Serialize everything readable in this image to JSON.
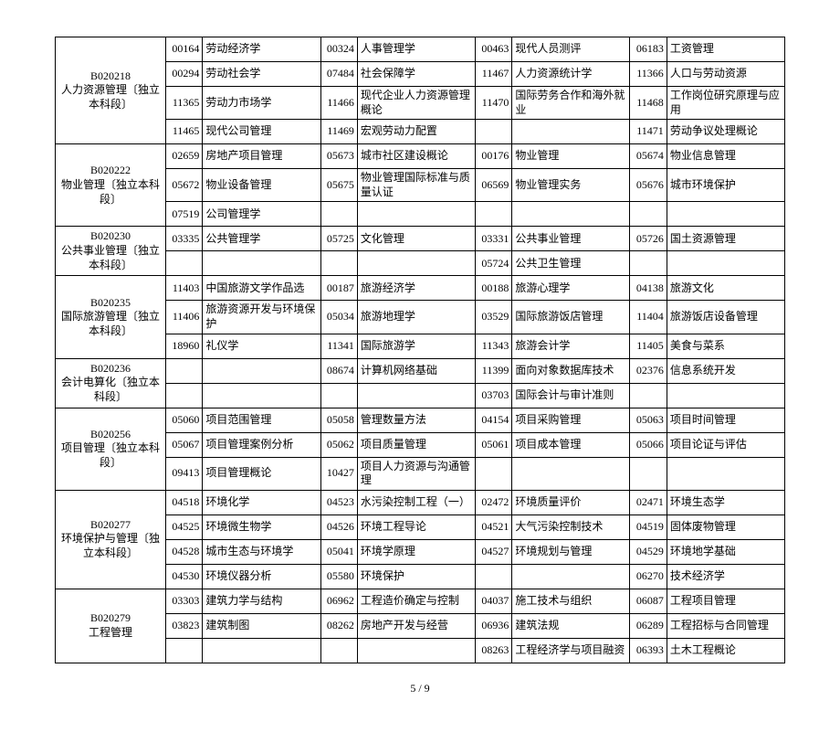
{
  "columns_width": [
    "15%",
    "5%",
    "16%",
    "5%",
    "16%",
    "5%",
    "16%",
    "5%",
    "16%"
  ],
  "rows": [
    [
      {
        "t": "B020218\n人力资源管理〔独立本科段〕",
        "align": "center",
        "rs": 4
      },
      {
        "t": "00164",
        "align": "right"
      },
      {
        "t": "劳动经济学"
      },
      {
        "t": "00324",
        "align": "right"
      },
      {
        "t": "人事管理学"
      },
      {
        "t": "00463",
        "align": "right"
      },
      {
        "t": "现代人员测评"
      },
      {
        "t": "06183",
        "align": "right"
      },
      {
        "t": "工资管理"
      }
    ],
    [
      {
        "t": "00294",
        "align": "right"
      },
      {
        "t": "劳动社会学"
      },
      {
        "t": "07484",
        "align": "right"
      },
      {
        "t": "社会保障学"
      },
      {
        "t": "11467",
        "align": "right"
      },
      {
        "t": "人力资源统计学"
      },
      {
        "t": "11366",
        "align": "right"
      },
      {
        "t": "人口与劳动资源"
      }
    ],
    [
      {
        "t": "11365",
        "align": "right"
      },
      {
        "t": "劳动力市场学"
      },
      {
        "t": "11466",
        "align": "right"
      },
      {
        "t": "现代企业人力资源管理概论"
      },
      {
        "t": "11470",
        "align": "right"
      },
      {
        "t": "国际劳务合作和海外就业"
      },
      {
        "t": "11468",
        "align": "right"
      },
      {
        "t": "工作岗位研究原理与应用"
      }
    ],
    [
      {
        "t": "11465",
        "align": "right"
      },
      {
        "t": "现代公司管理"
      },
      {
        "t": "11469",
        "align": "right"
      },
      {
        "t": "宏观劳动力配置"
      },
      {
        "t": ""
      },
      {
        "t": ""
      },
      {
        "t": "11471",
        "align": "right"
      },
      {
        "t": "劳动争议处理概论"
      }
    ],
    [
      {
        "t": "B020222\n物业管理〔独立本科段〕",
        "align": "center",
        "rs": 3
      },
      {
        "t": "02659",
        "align": "right"
      },
      {
        "t": "房地产项目管理"
      },
      {
        "t": "05673",
        "align": "right"
      },
      {
        "t": "城市社区建设概论"
      },
      {
        "t": "00176",
        "align": "right"
      },
      {
        "t": "物业管理"
      },
      {
        "t": "05674",
        "align": "right"
      },
      {
        "t": "物业信息管理"
      }
    ],
    [
      {
        "t": "05672",
        "align": "right"
      },
      {
        "t": "物业设备管理"
      },
      {
        "t": "05675",
        "align": "right"
      },
      {
        "t": "物业管理国际标准与质量认证"
      },
      {
        "t": "06569",
        "align": "right"
      },
      {
        "t": "物业管理实务"
      },
      {
        "t": "05676",
        "align": "right"
      },
      {
        "t": "城市环境保护"
      }
    ],
    [
      {
        "t": "07519",
        "align": "right"
      },
      {
        "t": "公司管理学"
      },
      {
        "t": ""
      },
      {
        "t": ""
      },
      {
        "t": ""
      },
      {
        "t": ""
      },
      {
        "t": ""
      },
      {
        "t": ""
      }
    ],
    [
      {
        "t": "B020230\n公共事业管理〔独立本科段〕",
        "align": "center",
        "rs": 2
      },
      {
        "t": "03335",
        "align": "right"
      },
      {
        "t": "公共管理学"
      },
      {
        "t": "05725",
        "align": "right"
      },
      {
        "t": "文化管理"
      },
      {
        "t": "03331",
        "align": "right"
      },
      {
        "t": "公共事业管理"
      },
      {
        "t": "05726",
        "align": "right"
      },
      {
        "t": "国土资源管理"
      }
    ],
    [
      {
        "t": ""
      },
      {
        "t": ""
      },
      {
        "t": ""
      },
      {
        "t": ""
      },
      {
        "t": "05724",
        "align": "right"
      },
      {
        "t": "公共卫生管理"
      },
      {
        "t": ""
      },
      {
        "t": ""
      }
    ],
    [
      {
        "t": "B020235\n国际旅游管理〔独立本科段〕",
        "align": "center",
        "rs": 3
      },
      {
        "t": "11403",
        "align": "right"
      },
      {
        "t": "中国旅游文学作品选"
      },
      {
        "t": "00187",
        "align": "right"
      },
      {
        "t": "旅游经济学"
      },
      {
        "t": "00188",
        "align": "right"
      },
      {
        "t": "旅游心理学"
      },
      {
        "t": "04138",
        "align": "right"
      },
      {
        "t": "旅游文化"
      }
    ],
    [
      {
        "t": "11406",
        "align": "right"
      },
      {
        "t": "旅游资源开发与环境保护"
      },
      {
        "t": "05034",
        "align": "right"
      },
      {
        "t": "旅游地理学"
      },
      {
        "t": "03529",
        "align": "right"
      },
      {
        "t": "国际旅游饭店管理"
      },
      {
        "t": "11404",
        "align": "right"
      },
      {
        "t": "旅游饭店设备管理"
      }
    ],
    [
      {
        "t": "18960",
        "align": "right"
      },
      {
        "t": "礼仪学"
      },
      {
        "t": "11341",
        "align": "right"
      },
      {
        "t": "国际旅游学"
      },
      {
        "t": "11343",
        "align": "right"
      },
      {
        "t": "旅游会计学"
      },
      {
        "t": "11405",
        "align": "right"
      },
      {
        "t": "美食与菜系"
      }
    ],
    [
      {
        "t": "B020236\n会计电算化〔独立本科段〕",
        "align": "center",
        "rs": 2
      },
      {
        "t": ""
      },
      {
        "t": ""
      },
      {
        "t": "08674",
        "align": "right"
      },
      {
        "t": "计算机网络基础"
      },
      {
        "t": "11399",
        "align": "right"
      },
      {
        "t": "面向对象数据库技术"
      },
      {
        "t": "02376",
        "align": "right"
      },
      {
        "t": "信息系统开发"
      }
    ],
    [
      {
        "t": ""
      },
      {
        "t": ""
      },
      {
        "t": ""
      },
      {
        "t": ""
      },
      {
        "t": "03703",
        "align": "right"
      },
      {
        "t": "国际会计与审计准则"
      },
      {
        "t": ""
      },
      {
        "t": ""
      }
    ],
    [
      {
        "t": "B020256\n项目管理〔独立本科段〕",
        "align": "center",
        "rs": 3
      },
      {
        "t": "05060",
        "align": "right"
      },
      {
        "t": "项目范围管理"
      },
      {
        "t": "05058",
        "align": "right"
      },
      {
        "t": "管理数量方法"
      },
      {
        "t": "04154",
        "align": "right"
      },
      {
        "t": "项目采购管理"
      },
      {
        "t": "05063",
        "align": "right"
      },
      {
        "t": "项目时间管理"
      }
    ],
    [
      {
        "t": "05067",
        "align": "right"
      },
      {
        "t": "项目管理案例分析"
      },
      {
        "t": "05062",
        "align": "right"
      },
      {
        "t": "项目质量管理"
      },
      {
        "t": "05061",
        "align": "right"
      },
      {
        "t": "项目成本管理"
      },
      {
        "t": "05066",
        "align": "right"
      },
      {
        "t": "项目论证与评估"
      }
    ],
    [
      {
        "t": "09413",
        "align": "right"
      },
      {
        "t": "项目管理概论"
      },
      {
        "t": "10427",
        "align": "right"
      },
      {
        "t": "项目人力资源与沟通管理"
      },
      {
        "t": ""
      },
      {
        "t": ""
      },
      {
        "t": ""
      },
      {
        "t": ""
      }
    ],
    [
      {
        "t": "B020277\n环境保护与管理〔独立本科段〕",
        "align": "center",
        "rs": 4
      },
      {
        "t": "04518",
        "align": "right"
      },
      {
        "t": "环境化学"
      },
      {
        "t": "04523",
        "align": "right"
      },
      {
        "t": "水污染控制工程（一）"
      },
      {
        "t": "02472",
        "align": "right"
      },
      {
        "t": "环境质量评价"
      },
      {
        "t": "02471",
        "align": "right"
      },
      {
        "t": "环境生态学"
      }
    ],
    [
      {
        "t": "04525",
        "align": "right"
      },
      {
        "t": "环境微生物学"
      },
      {
        "t": "04526",
        "align": "right"
      },
      {
        "t": "环境工程导论"
      },
      {
        "t": "04521",
        "align": "right"
      },
      {
        "t": "大气污染控制技术"
      },
      {
        "t": "04519",
        "align": "right"
      },
      {
        "t": "固体废物管理"
      }
    ],
    [
      {
        "t": "04528",
        "align": "right"
      },
      {
        "t": "城市生态与环境学"
      },
      {
        "t": "05041",
        "align": "right"
      },
      {
        "t": "环境学原理"
      },
      {
        "t": "04527",
        "align": "right"
      },
      {
        "t": "环境规划与管理"
      },
      {
        "t": "04529",
        "align": "right"
      },
      {
        "t": "环境地学基础"
      }
    ],
    [
      {
        "t": "04530",
        "align": "right"
      },
      {
        "t": "环境仪器分析"
      },
      {
        "t": "05580",
        "align": "right"
      },
      {
        "t": "环境保护"
      },
      {
        "t": ""
      },
      {
        "t": ""
      },
      {
        "t": "06270",
        "align": "right"
      },
      {
        "t": "技术经济学"
      }
    ],
    [
      {
        "t": "B020279\n工程管理",
        "align": "center",
        "rs": 3
      },
      {
        "t": "03303",
        "align": "right"
      },
      {
        "t": "建筑力学与结构"
      },
      {
        "t": "06962",
        "align": "right"
      },
      {
        "t": "工程造价确定与控制"
      },
      {
        "t": "04037",
        "align": "right"
      },
      {
        "t": "施工技术与组织"
      },
      {
        "t": "06087",
        "align": "right"
      },
      {
        "t": "工程项目管理"
      }
    ],
    [
      {
        "t": "03823",
        "align": "right"
      },
      {
        "t": "建筑制图"
      },
      {
        "t": "08262",
        "align": "right"
      },
      {
        "t": "房地产开发与经营"
      },
      {
        "t": "06936",
        "align": "right"
      },
      {
        "t": "建筑法规"
      },
      {
        "t": "06289",
        "align": "right"
      },
      {
        "t": "工程招标与合同管理"
      }
    ],
    [
      {
        "t": ""
      },
      {
        "t": ""
      },
      {
        "t": ""
      },
      {
        "t": ""
      },
      {
        "t": "08263",
        "align": "right"
      },
      {
        "t": "工程经济学与项目融资"
      },
      {
        "t": "06393",
        "align": "right"
      },
      {
        "t": "土木工程概论"
      }
    ]
  ],
  "footer": "5 / 9"
}
